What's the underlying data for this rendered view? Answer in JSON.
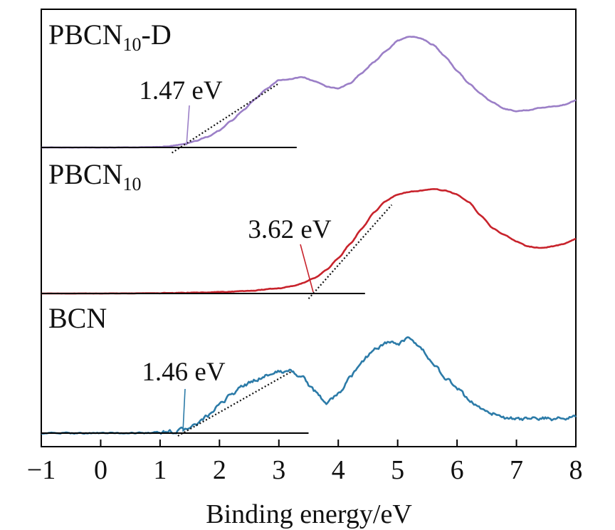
{
  "chart_data": {
    "type": "line",
    "title": "",
    "xlabel": "Binding energy/eV",
    "ylabel": "",
    "xlim": [
      -1,
      8
    ],
    "xticks": [
      -1,
      0,
      1,
      2,
      3,
      4,
      5,
      6,
      7,
      8
    ],
    "xtick_labels": [
      "−1",
      "0",
      "1",
      "2",
      "3",
      "4",
      "5",
      "6",
      "7",
      "8"
    ],
    "y_axis": "offset intensity (a.u.), no ticks",
    "grid": false,
    "legend": "none (inline labels at left of each curve)",
    "series": [
      {
        "name_main": "PBCN",
        "name_sub": "10",
        "name_suffix": "-D",
        "color": "#9b7fc7",
        "baseline": 0,
        "noise": 0.006,
        "x": [
          -1.0,
          0.0,
          0.5,
          1.0,
          1.2,
          1.4,
          1.6,
          1.8,
          2.0,
          2.2,
          2.4,
          2.6,
          2.8,
          3.0,
          3.2,
          3.4,
          3.6,
          3.8,
          4.0,
          4.2,
          4.4,
          4.6,
          4.8,
          5.0,
          5.2,
          5.4,
          5.6,
          5.8,
          6.0,
          6.2,
          6.4,
          6.6,
          6.8,
          7.0,
          7.2,
          7.4,
          7.6,
          7.8,
          8.0
        ],
        "y": [
          0.0,
          0.0,
          0.0,
          0.005,
          0.015,
          0.03,
          0.06,
          0.1,
          0.16,
          0.25,
          0.35,
          0.45,
          0.55,
          0.63,
          0.64,
          0.66,
          0.62,
          0.57,
          0.55,
          0.6,
          0.7,
          0.8,
          0.9,
          1.0,
          1.04,
          1.02,
          0.96,
          0.85,
          0.72,
          0.6,
          0.5,
          0.42,
          0.36,
          0.34,
          0.35,
          0.37,
          0.38,
          0.4,
          0.44
        ],
        "onset": {
          "label": "1.47 eV",
          "value": 1.47,
          "tangent_x": [
            1.2,
            3.0
          ],
          "tangent_y": [
            -0.05,
            0.6
          ],
          "baseline_x": [
            -1,
            3.3
          ]
        }
      },
      {
        "name_main": "PBCN",
        "name_sub": "10",
        "name_suffix": "",
        "color": "#c8232c",
        "baseline": 0,
        "noise": 0.004,
        "x": [
          -1.0,
          0.0,
          1.0,
          1.5,
          2.0,
          2.5,
          3.0,
          3.2,
          3.4,
          3.6,
          3.8,
          4.0,
          4.2,
          4.4,
          4.6,
          4.8,
          5.0,
          5.2,
          5.4,
          5.6,
          5.8,
          6.0,
          6.2,
          6.4,
          6.6,
          6.8,
          7.0,
          7.2,
          7.4,
          7.6,
          7.8,
          8.0
        ],
        "y": [
          0.0,
          0.0,
          0.002,
          0.005,
          0.01,
          0.02,
          0.04,
          0.055,
          0.08,
          0.12,
          0.18,
          0.27,
          0.38,
          0.5,
          0.62,
          0.71,
          0.76,
          0.78,
          0.79,
          0.8,
          0.79,
          0.76,
          0.7,
          0.6,
          0.5,
          0.45,
          0.4,
          0.36,
          0.35,
          0.36,
          0.38,
          0.42
        ],
        "onset": {
          "label": "3.62 eV",
          "value": 3.62,
          "tangent_x": [
            3.5,
            4.9
          ],
          "tangent_y": [
            -0.04,
            0.68
          ],
          "baseline_x": [
            -1,
            4.45
          ]
        }
      },
      {
        "name_main": "BCN",
        "name_sub": "",
        "name_suffix": "",
        "color": "#2c7ba8",
        "baseline": 0,
        "noise": 0.022,
        "x": [
          -1.0,
          0.0,
          0.5,
          1.0,
          1.2,
          1.4,
          1.6,
          1.8,
          2.0,
          2.2,
          2.4,
          2.6,
          2.8,
          3.0,
          3.2,
          3.4,
          3.6,
          3.8,
          4.0,
          4.2,
          4.4,
          4.6,
          4.8,
          5.0,
          5.2,
          5.4,
          5.6,
          5.8,
          6.0,
          6.2,
          6.4,
          6.6,
          6.8,
          7.0,
          7.2,
          7.4,
          7.6,
          7.8,
          8.0
        ],
        "y": [
          0.0,
          0.0,
          0.0,
          0.005,
          0.01,
          0.025,
          0.06,
          0.12,
          0.2,
          0.28,
          0.34,
          0.38,
          0.42,
          0.44,
          0.45,
          0.4,
          0.3,
          0.22,
          0.28,
          0.4,
          0.52,
          0.6,
          0.65,
          0.64,
          0.68,
          0.6,
          0.5,
          0.4,
          0.32,
          0.24,
          0.18,
          0.14,
          0.11,
          0.1,
          0.1,
          0.11,
          0.1,
          0.11,
          0.12
        ],
        "onset": {
          "label": "1.46 eV",
          "value": 1.46,
          "tangent_x": [
            1.3,
            3.2
          ],
          "tangent_y": [
            -0.02,
            0.44
          ],
          "baseline_x": [
            -1,
            3.5
          ]
        }
      }
    ]
  }
}
